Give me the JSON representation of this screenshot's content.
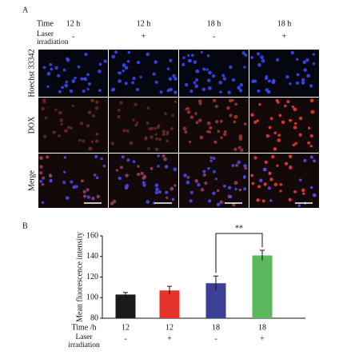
{
  "panel_a": {
    "label": "A",
    "time_label": "Time",
    "times": [
      "12 h",
      "12 h",
      "18 h",
      "18 h"
    ],
    "laser_label": "Laser irradiation",
    "laser": [
      "-",
      "+",
      "-",
      "+"
    ],
    "rows": [
      "Hoechst 33342",
      "DOX",
      "Merge"
    ]
  },
  "chart_data": {
    "type": "bar",
    "label": "B",
    "y_label": "Mean fluorescence intensity",
    "x_label": "Time /h",
    "categories": [
      "12",
      "12",
      "18",
      "18"
    ],
    "laser_label": "Laser irradiation",
    "laser": [
      "-",
      "+",
      "-",
      "+"
    ],
    "values": [
      103,
      107,
      114,
      141
    ],
    "errors": [
      2,
      4,
      7,
      5
    ],
    "colors": [
      "#1a1a1a",
      "#e8332a",
      "#3b3f96",
      "#5cb85c"
    ],
    "ylim": [
      80,
      160
    ],
    "yticks": [
      80,
      100,
      120,
      140,
      160
    ],
    "annotation": {
      "text": "**",
      "from": 2,
      "to": 3
    }
  }
}
